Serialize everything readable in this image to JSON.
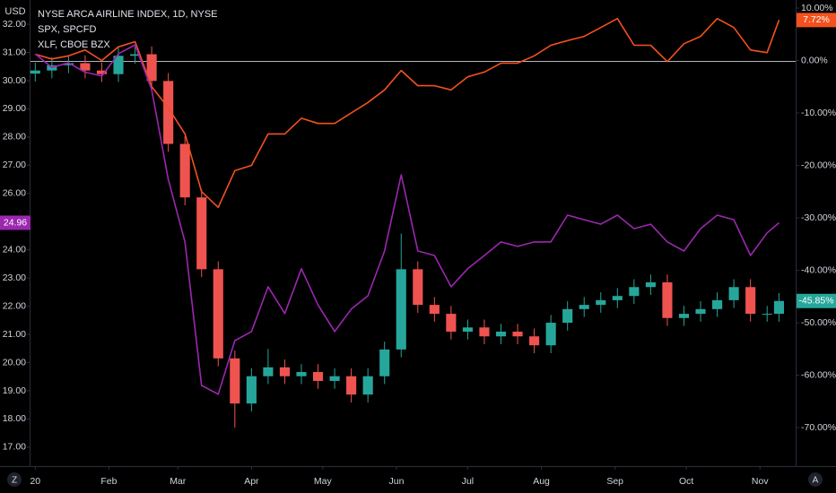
{
  "chart_data": {
    "type": "candlestick",
    "currency": "USD",
    "legend": "top-left",
    "x": [
      0,
      7,
      14,
      21,
      28,
      35,
      42,
      49,
      56,
      63,
      70,
      77,
      84,
      91,
      98,
      105,
      112,
      119,
      126,
      133,
      140,
      147,
      154,
      161,
      168,
      175,
      182,
      189,
      196,
      203,
      210,
      217,
      224,
      231,
      238,
      245,
      252,
      259,
      266,
      273,
      280,
      287,
      294,
      301,
      308,
      313
    ],
    "xlim": [
      -2,
      320
    ],
    "xticks": [
      {
        "value": 0,
        "label": "20"
      },
      {
        "value": 31,
        "label": "Feb"
      },
      {
        "value": 60,
        "label": "Mar"
      },
      {
        "value": 91,
        "label": "Apr"
      },
      {
        "value": 121,
        "label": "May"
      },
      {
        "value": 152,
        "label": "Jun"
      },
      {
        "value": 182,
        "label": "Jul"
      },
      {
        "value": 213,
        "label": "Aug"
      },
      {
        "value": 244,
        "label": "Sep"
      },
      {
        "value": 274,
        "label": "Oct"
      },
      {
        "value": 305,
        "label": "Nov"
      }
    ],
    "ylim": [
      16.33,
      32.86
    ],
    "yticks": [
      {
        "value": 17,
        "label": "17.00"
      },
      {
        "value": 18,
        "label": "18.00"
      },
      {
        "value": 19,
        "label": "19.00"
      },
      {
        "value": 20,
        "label": "20.00"
      },
      {
        "value": 21,
        "label": "21.00"
      },
      {
        "value": 22,
        "label": "22.00"
      },
      {
        "value": 23,
        "label": "23.00"
      },
      {
        "value": 24,
        "label": "24.00"
      },
      {
        "value": 25,
        "label": "25.00"
      },
      {
        "value": 26,
        "label": "26.00"
      },
      {
        "value": 27,
        "label": "27.00"
      },
      {
        "value": 28,
        "label": "28.00"
      },
      {
        "value": 29,
        "label": "29.00"
      },
      {
        "value": 30,
        "label": "30.00"
      },
      {
        "value": 31,
        "label": "31.00"
      },
      {
        "value": 32,
        "label": "32.00"
      }
    ],
    "y2lim": [
      -77.34,
      11.54
    ],
    "y2ticks": [
      {
        "value": 10,
        "label": "10.00%"
      },
      {
        "value": 0,
        "label": "0.00%"
      },
      {
        "value": -10,
        "label": "-10.00%"
      },
      {
        "value": -20,
        "label": "-20.00%"
      },
      {
        "value": -30,
        "label": "-30.00%"
      },
      {
        "value": -40,
        "label": "-40.00%"
      },
      {
        "value": -50,
        "label": "-50.00%"
      },
      {
        "value": -60,
        "label": "-60.00%"
      },
      {
        "value": -70,
        "label": "-70.00%"
      }
    ],
    "candles": {
      "name": "NYSE ARCA AIRLINE INDEX, 1D, NYSE",
      "axis": "y2",
      "up_color": "#26a69a",
      "down_color": "#ef5350",
      "open": [
        -2.5,
        -1.9,
        -0.9,
        -0.5,
        -1.9,
        -2.6,
        0.9,
        1.2,
        -3.9,
        -15.9,
        -26.1,
        -39.8,
        -56.8,
        -65.4,
        -60.2,
        -58.5,
        -60.2,
        -59.4,
        -61.1,
        -60.2,
        -63.7,
        -60.2,
        -55.1,
        -39.8,
        -46.6,
        -48.3,
        -51.7,
        -50.9,
        -52.6,
        -51.7,
        -52.6,
        -54.3,
        -50.0,
        -47.4,
        -46.6,
        -45.7,
        -44.9,
        -43.2,
        -42.3,
        -49.1,
        -48.3,
        -47.4,
        -45.7,
        -43.2,
        -48.3,
        -48.3
      ],
      "high": [
        -0.4,
        0.6,
        1.0,
        1.0,
        -0.4,
        2.4,
        2.7,
        2.7,
        -2.4,
        -14.4,
        -24.6,
        -38.3,
        -55.3,
        -58.7,
        -55.0,
        -57.0,
        -57.9,
        -57.9,
        -58.7,
        -58.7,
        -58.7,
        -53.6,
        -33.0,
        -38.3,
        -45.1,
        -46.8,
        -49.4,
        -49.4,
        -50.2,
        -50.2,
        -51.1,
        -48.5,
        -45.9,
        -45.1,
        -44.2,
        -43.4,
        -41.7,
        -40.8,
        -40.8,
        -46.8,
        -45.9,
        -44.2,
        -41.7,
        -41.7,
        -46.8,
        -44.35
      ],
      "low": [
        -4.0,
        -3.4,
        -2.4,
        -3.4,
        -4.1,
        -4.1,
        -0.6,
        -5.4,
        -17.4,
        -27.6,
        -41.3,
        -58.3,
        -70.0,
        -66.9,
        -61.7,
        -61.7,
        -61.7,
        -62.6,
        -62.6,
        -65.2,
        -65.2,
        -61.7,
        -56.6,
        -48.1,
        -49.8,
        -53.2,
        -53.2,
        -54.1,
        -54.1,
        -54.1,
        -55.8,
        -55.8,
        -51.5,
        -48.9,
        -48.1,
        -47.2,
        -46.4,
        -44.7,
        -50.6,
        -50.6,
        -49.8,
        -48.9,
        -47.2,
        -49.8,
        -49.8,
        -49.8
      ],
      "close": [
        -1.9,
        -0.9,
        -0.5,
        -1.9,
        -2.6,
        0.9,
        1.2,
        -3.9,
        -15.9,
        -26.1,
        -39.8,
        -56.8,
        -65.4,
        -60.2,
        -58.5,
        -60.2,
        -59.4,
        -61.1,
        -60.2,
        -63.7,
        -60.2,
        -55.1,
        -39.8,
        -46.6,
        -48.3,
        -51.7,
        -50.9,
        -52.6,
        -51.7,
        -52.6,
        -54.3,
        -50.0,
        -47.4,
        -46.6,
        -45.7,
        -44.9,
        -43.2,
        -42.3,
        -49.1,
        -48.3,
        -47.4,
        -45.7,
        -43.2,
        -48.3,
        -48.3,
        -45.85
      ],
      "value_labels": [
        null,
        null,
        null,
        null,
        null,
        null,
        null,
        null,
        null,
        null,
        null,
        null,
        null,
        null,
        null,
        null,
        null,
        null,
        null,
        null,
        null,
        null,
        null,
        null,
        null,
        null,
        null,
        null,
        null,
        null,
        null,
        null,
        null,
        null,
        null,
        null,
        null,
        null,
        null,
        null,
        null,
        null,
        null,
        null,
        null,
        "-45.85%"
      ]
    },
    "series": [
      {
        "name": "SPX, SPCFD",
        "color": "#f4511e",
        "axis": "y2",
        "values": [
          1.2,
          0.3,
          0.9,
          2.0,
          0.0,
          2.6,
          3.6,
          -5.0,
          -9.0,
          -14.0,
          -25.0,
          -28.0,
          -21.0,
          -20.0,
          -14.0,
          -14.0,
          -11.0,
          -12.0,
          -12.0,
          -10.0,
          -8.0,
          -5.6,
          -1.9,
          -4.8,
          -4.8,
          -5.6,
          -3.1,
          -2.2,
          -0.5,
          -0.5,
          0.9,
          2.9,
          3.8,
          4.6,
          6.3,
          8.0,
          2.9,
          2.9,
          -0.2,
          3.2,
          4.6,
          8.0,
          6.3,
          2.0,
          1.5,
          7.72
        ],
        "value_labels": [
          null,
          null,
          null,
          null,
          null,
          null,
          null,
          null,
          null,
          null,
          null,
          null,
          null,
          null,
          null,
          null,
          null,
          null,
          null,
          null,
          null,
          null,
          null,
          null,
          null,
          null,
          null,
          null,
          null,
          null,
          null,
          null,
          null,
          null,
          null,
          null,
          null,
          null,
          null,
          null,
          null,
          null,
          null,
          null,
          null,
          "7.72%"
        ]
      },
      {
        "name": "XLF, CBOE BZX",
        "color": "#9c27b0",
        "axis": "y",
        "values": [
          30.95,
          30.47,
          30.63,
          30.3,
          30.16,
          30.95,
          31.27,
          29.68,
          26.5,
          24.28,
          19.19,
          18.88,
          20.78,
          21.1,
          22.69,
          21.74,
          23.33,
          22.05,
          21.1,
          21.9,
          22.37,
          23.96,
          26.66,
          23.96,
          23.8,
          22.69,
          23.33,
          23.8,
          24.28,
          24.12,
          24.28,
          24.28,
          25.23,
          25.07,
          24.91,
          25.23,
          24.75,
          24.91,
          24.28,
          23.96,
          24.75,
          25.23,
          25.07,
          23.8,
          24.6,
          24.96
        ]
      }
    ]
  },
  "ui": {
    "zoom_button": "Z",
    "auto_button": "A"
  }
}
